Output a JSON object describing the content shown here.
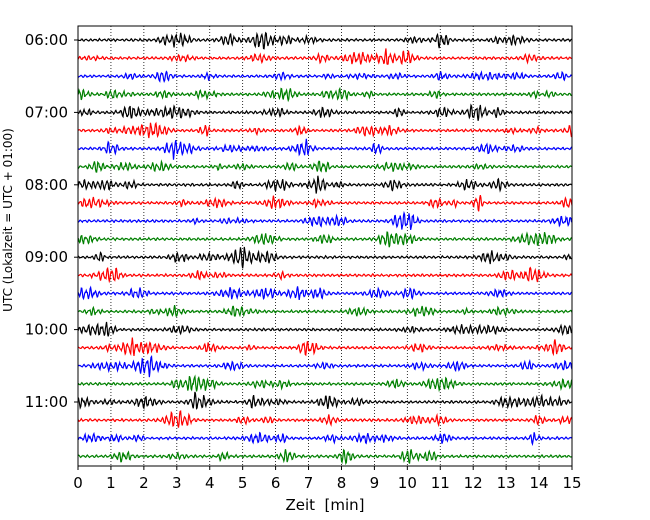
{
  "chart_data": {
    "type": "line",
    "title": "",
    "xlabel": "Zeit  [min]",
    "ylabel": "UTC (Lokalzeit = UTC + 01:00)",
    "xlim": [
      0,
      15
    ],
    "x_ticks": [
      0,
      1,
      2,
      3,
      4,
      5,
      6,
      7,
      8,
      9,
      10,
      11,
      12,
      13,
      14,
      15
    ],
    "x_tick_labels": [
      "0",
      "1",
      "2",
      "3",
      "4",
      "5",
      "6",
      "7",
      "8",
      "9",
      "10",
      "11",
      "12",
      "13",
      "14",
      "15"
    ],
    "y_tick_labels": [
      "06:00",
      "07:00",
      "08:00",
      "09:00",
      "10:00",
      "11:00"
    ],
    "trace_interval_min": 15,
    "traces": [
      {
        "start": "06:00",
        "color": "#000000"
      },
      {
        "start": "06:15",
        "color": "#ff0000"
      },
      {
        "start": "06:30",
        "color": "#0000ff"
      },
      {
        "start": "06:45",
        "color": "#008000"
      },
      {
        "start": "07:00",
        "color": "#000000"
      },
      {
        "start": "07:15",
        "color": "#ff0000"
      },
      {
        "start": "07:30",
        "color": "#0000ff"
      },
      {
        "start": "07:45",
        "color": "#008000"
      },
      {
        "start": "08:00",
        "color": "#000000"
      },
      {
        "start": "08:15",
        "color": "#ff0000"
      },
      {
        "start": "08:30",
        "color": "#0000ff"
      },
      {
        "start": "08:45",
        "color": "#008000"
      },
      {
        "start": "09:00",
        "color": "#000000"
      },
      {
        "start": "09:15",
        "color": "#ff0000"
      },
      {
        "start": "09:30",
        "color": "#0000ff"
      },
      {
        "start": "09:45",
        "color": "#008000"
      },
      {
        "start": "10:00",
        "color": "#000000"
      },
      {
        "start": "10:15",
        "color": "#ff0000"
      },
      {
        "start": "10:30",
        "color": "#0000ff"
      },
      {
        "start": "10:45",
        "color": "#008000"
      },
      {
        "start": "11:00",
        "color": "#000000"
      },
      {
        "start": "11:15",
        "color": "#ff0000"
      },
      {
        "start": "11:30",
        "color": "#0000ff"
      },
      {
        "start": "11:45",
        "color": "#008000"
      }
    ],
    "grid": {
      "x": true,
      "y": false,
      "style": "dotted"
    }
  }
}
